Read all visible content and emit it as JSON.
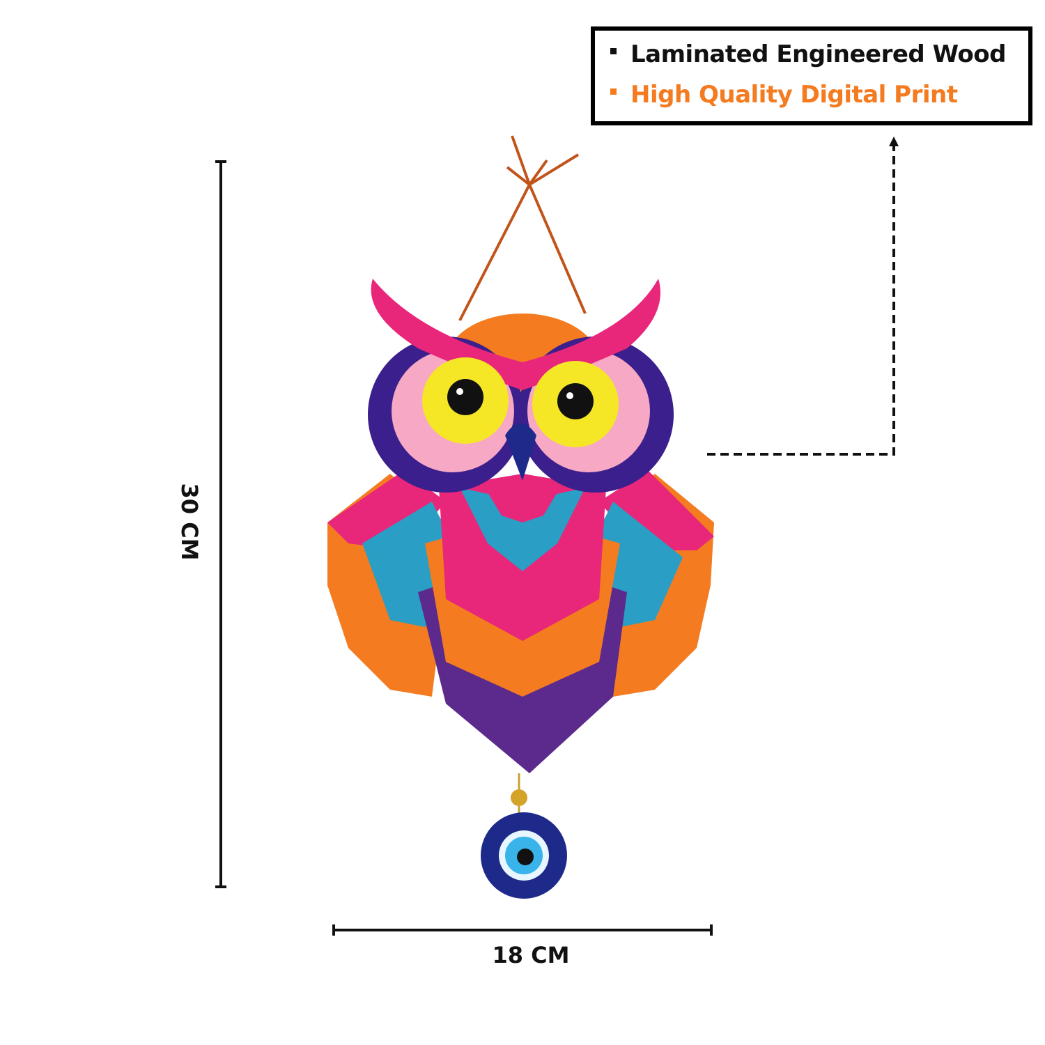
{
  "features": [
    {
      "label": "Laminated Engineered Wood",
      "color": "#111111"
    },
    {
      "label": "High Quality Digital Print",
      "color": "#f47b20"
    }
  ],
  "dimensions": {
    "height": "30 CM",
    "width": "18 CM"
  },
  "product": {
    "colors": {
      "pink": "#e8267a",
      "orange": "#f47b20",
      "teal": "#2a9ec4",
      "purple": "#5b2a8c",
      "yellow": "#f5e626",
      "navy": "#1e2a8a"
    }
  }
}
